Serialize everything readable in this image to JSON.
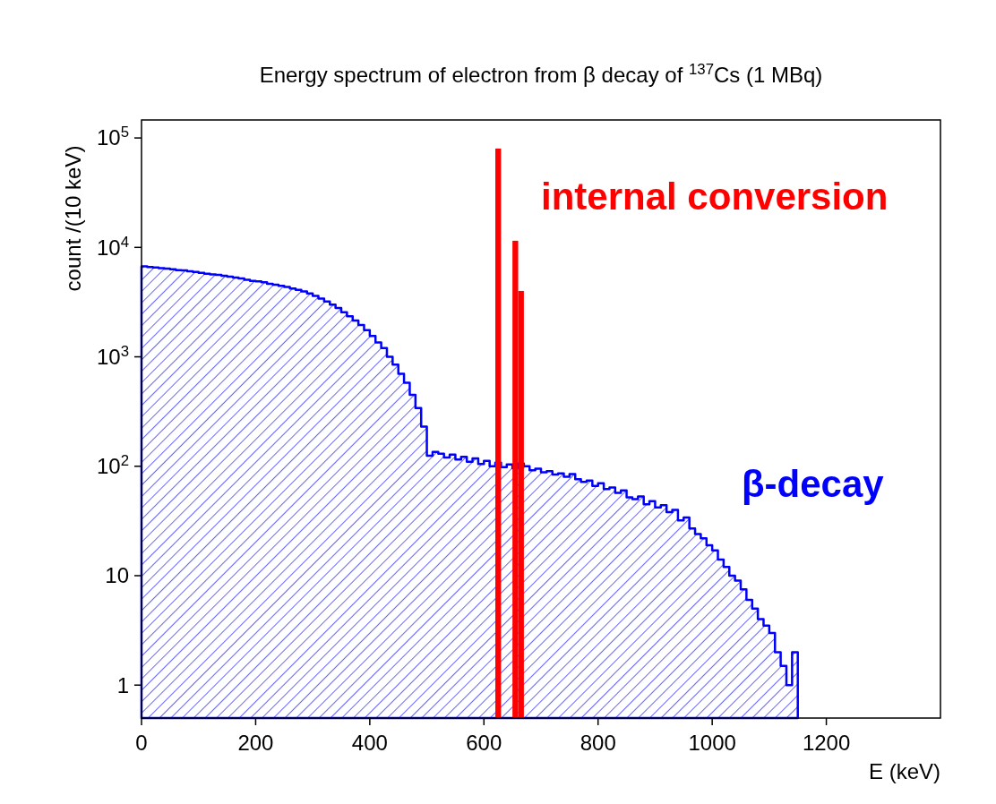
{
  "chart_data": {
    "type": "histogram",
    "title": "Energy spectrum of electron from β decay of $^{137}$Cs (1 MBq)",
    "xlabel": "E (keV)",
    "ylabel": "count /(10 keV)",
    "log": "y",
    "legend": false,
    "grid": false,
    "xlim": [
      0,
      1400
    ],
    "xticks": [
      0,
      200,
      400,
      600,
      800,
      1000,
      1200
    ],
    "ylim": [
      0.5,
      146000
    ],
    "yticks": [
      1,
      10,
      {
        "value": 100,
        "label": "10$^{2}$"
      },
      {
        "value": 1000,
        "label": "10$^{3}$"
      },
      {
        "value": 10000,
        "label": "10$^{4}$"
      },
      {
        "value": 100000,
        "label": "10$^{5}$"
      }
    ],
    "bins": [
      0,
      10,
      20,
      30,
      40,
      50,
      60,
      70,
      80,
      90,
      100,
      110,
      120,
      130,
      140,
      150,
      160,
      170,
      180,
      190,
      200,
      210,
      220,
      230,
      240,
      250,
      260,
      270,
      280,
      290,
      300,
      310,
      320,
      330,
      340,
      350,
      360,
      370,
      380,
      390,
      400,
      410,
      420,
      430,
      440,
      450,
      460,
      470,
      480,
      490,
      500,
      510,
      520,
      530,
      540,
      550,
      560,
      570,
      580,
      590,
      600,
      610,
      620,
      630,
      640,
      650,
      660,
      670,
      680,
      690,
      700,
      710,
      720,
      730,
      740,
      750,
      760,
      770,
      780,
      790,
      800,
      810,
      820,
      830,
      840,
      850,
      860,
      870,
      880,
      890,
      900,
      910,
      920,
      930,
      940,
      950,
      960,
      970,
      980,
      990,
      1000,
      1010,
      1020,
      1030,
      1040,
      1050,
      1060,
      1070,
      1080,
      1090,
      1100,
      1110,
      1120,
      1130,
      1140,
      1150
    ],
    "series": [
      {
        "name": "β-decay",
        "color": "#0000ff",
        "values": [
          6700,
          6600,
          6550,
          6450,
          6400,
          6300,
          6200,
          6150,
          6050,
          5950,
          5850,
          5750,
          5650,
          5600,
          5500,
          5400,
          5300,
          5200,
          5050,
          4950,
          4900,
          4800,
          4650,
          4550,
          4450,
          4350,
          4200,
          4100,
          3950,
          3800,
          3600,
          3400,
          3200,
          3000,
          2800,
          2550,
          2350,
          2150,
          1950,
          1750,
          1550,
          1350,
          1200,
          1000,
          850,
          700,
          580,
          450,
          340,
          230,
          125,
          135,
          130,
          120,
          128,
          115,
          122,
          110,
          118,
          105,
          112,
          100,
          108,
          98,
          104,
          96,
          106,
          100,
          92,
          95,
          88,
          90,
          84,
          86,
          80,
          85,
          76,
          72,
          74,
          66,
          70,
          62,
          64,
          57,
          60,
          52,
          50,
          53,
          45,
          48,
          42,
          44,
          38,
          40,
          32,
          34,
          27,
          24,
          22,
          19,
          17,
          14,
          12,
          10,
          9,
          7.5,
          6,
          5,
          4,
          3.5,
          3,
          2,
          1.5,
          1,
          2
        ]
      },
      {
        "name": "internal conversion",
        "color": "#ff0000",
        "bins": [
          620,
          630,
          640,
          650,
          660,
          670
        ],
        "values": [
          80000,
          null,
          null,
          11500,
          4000
        ]
      }
    ]
  }
}
